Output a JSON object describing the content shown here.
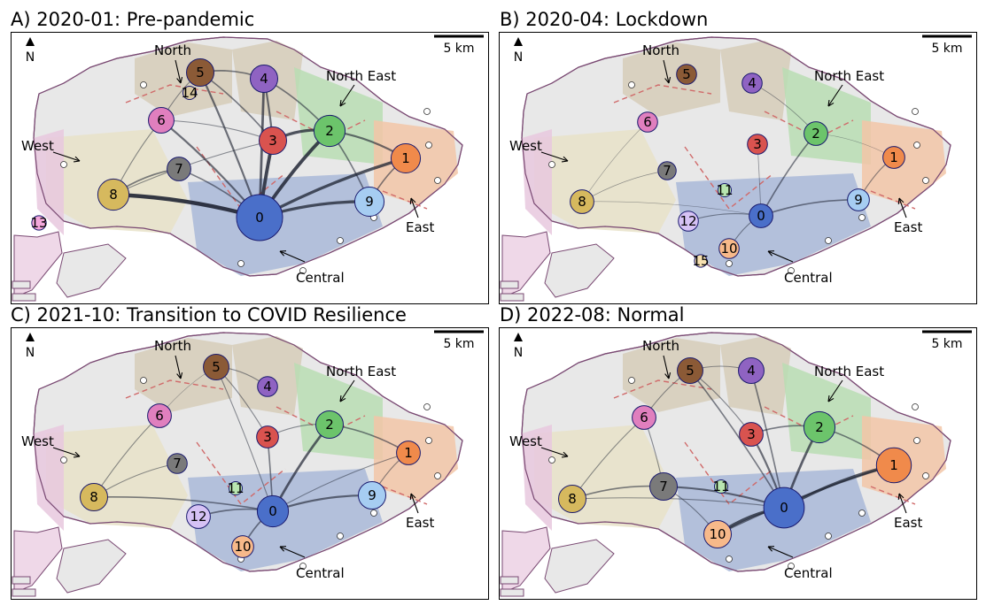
{
  "panels": [
    {
      "id": "A",
      "title": "A) 2020-01: Pre-pandemic",
      "clusters": [
        {
          "id": 0,
          "label": "0",
          "color": "#4a6fc9",
          "weight": 1.0
        },
        {
          "id": 1,
          "label": "1",
          "color": "#f08a4b",
          "weight": 0.55
        },
        {
          "id": 2,
          "label": "2",
          "color": "#6cc46b",
          "weight": 0.6
        },
        {
          "id": 3,
          "label": "3",
          "color": "#d9534f",
          "weight": 0.5
        },
        {
          "id": 4,
          "label": "4",
          "color": "#8f63c2",
          "weight": 0.5
        },
        {
          "id": 5,
          "label": "5",
          "color": "#8b5a36",
          "weight": 0.5
        },
        {
          "id": 6,
          "label": "6",
          "color": "#e07fbe",
          "weight": 0.45
        },
        {
          "id": 7,
          "label": "7",
          "color": "#7a7a7a",
          "weight": 0.4
        },
        {
          "id": 8,
          "label": "8",
          "color": "#d6b95e",
          "weight": 0.6
        },
        {
          "id": 9,
          "label": "9",
          "color": "#a6cdf2",
          "weight": 0.55
        },
        {
          "id": 13,
          "label": "13",
          "color": "#f4a8dc",
          "weight": 0.15
        },
        {
          "id": 14,
          "label": "14",
          "color": "#d8c8a0",
          "weight": 0.12
        }
      ],
      "edges": [
        [
          0,
          8,
          8
        ],
        [
          0,
          2,
          7
        ],
        [
          0,
          1,
          6
        ],
        [
          0,
          9,
          6
        ],
        [
          0,
          3,
          7
        ],
        [
          0,
          4,
          5
        ],
        [
          0,
          5,
          4
        ],
        [
          0,
          6,
          4
        ],
        [
          0,
          7,
          3
        ],
        [
          2,
          3,
          6
        ],
        [
          2,
          1,
          4
        ],
        [
          2,
          9,
          3
        ],
        [
          2,
          4,
          3
        ],
        [
          3,
          4,
          4
        ],
        [
          3,
          5,
          3
        ],
        [
          5,
          4,
          3
        ],
        [
          8,
          7,
          3
        ],
        [
          8,
          6,
          2
        ],
        [
          9,
          1,
          3
        ],
        [
          6,
          5,
          2
        ],
        [
          3,
          6,
          2
        ],
        [
          8,
          3,
          2
        ]
      ]
    },
    {
      "id": "B",
      "title": "B) 2020-04: Lockdown",
      "clusters": [
        {
          "id": 0,
          "label": "0",
          "color": "#4a6fc9",
          "weight": 0.4
        },
        {
          "id": 1,
          "label": "1",
          "color": "#f08a4b",
          "weight": 0.35
        },
        {
          "id": 2,
          "label": "2",
          "color": "#6cc46b",
          "weight": 0.4
        },
        {
          "id": 3,
          "label": "3",
          "color": "#d9534f",
          "weight": 0.3
        },
        {
          "id": 4,
          "label": "4",
          "color": "#8f63c2",
          "weight": 0.3
        },
        {
          "id": 5,
          "label": "5",
          "color": "#8b5a36",
          "weight": 0.3
        },
        {
          "id": 6,
          "label": "6",
          "color": "#e07fbe",
          "weight": 0.3
        },
        {
          "id": 7,
          "label": "7",
          "color": "#7a7a7a",
          "weight": 0.25
        },
        {
          "id": 8,
          "label": "8",
          "color": "#d6b95e",
          "weight": 0.4
        },
        {
          "id": 9,
          "label": "9",
          "color": "#a6cdf2",
          "weight": 0.35
        },
        {
          "id": 10,
          "label": "10",
          "color": "#f7b98a",
          "weight": 0.3
        },
        {
          "id": 11,
          "label": "11",
          "color": "#b8e6b0",
          "weight": 0.12
        },
        {
          "id": 12,
          "label": "12",
          "color": "#d6c2f5",
          "weight": 0.3
        },
        {
          "id": 15,
          "label": "15",
          "color": "#f6e0b0",
          "weight": 0.1
        }
      ],
      "edges": [
        [
          0,
          9,
          3
        ],
        [
          0,
          2,
          3
        ],
        [
          0,
          12,
          2
        ],
        [
          0,
          10,
          2
        ],
        [
          9,
          1,
          2
        ],
        [
          0,
          3,
          1.5
        ],
        [
          2,
          4,
          1.5
        ],
        [
          8,
          7,
          1.5
        ],
        [
          8,
          6,
          1
        ],
        [
          2,
          1,
          1
        ],
        [
          0,
          8,
          1
        ]
      ]
    },
    {
      "id": "C",
      "title": "C) 2021-10: Transition to COVID Resilience",
      "clusters": [
        {
          "id": 0,
          "label": "0",
          "color": "#4a6fc9",
          "weight": 0.6
        },
        {
          "id": 1,
          "label": "1",
          "color": "#f08a4b",
          "weight": 0.4
        },
        {
          "id": 2,
          "label": "2",
          "color": "#6cc46b",
          "weight": 0.5
        },
        {
          "id": 3,
          "label": "3",
          "color": "#d9534f",
          "weight": 0.35
        },
        {
          "id": 4,
          "label": "4",
          "color": "#8f63c2",
          "weight": 0.3
        },
        {
          "id": 5,
          "label": "5",
          "color": "#8b5a36",
          "weight": 0.45
        },
        {
          "id": 6,
          "label": "6",
          "color": "#e07fbe",
          "weight": 0.4
        },
        {
          "id": 7,
          "label": "7",
          "color": "#7a7a7a",
          "weight": 0.3
        },
        {
          "id": 8,
          "label": "8",
          "color": "#d6b95e",
          "weight": 0.5
        },
        {
          "id": 9,
          "label": "9",
          "color": "#a6cdf2",
          "weight": 0.5
        },
        {
          "id": 10,
          "label": "10",
          "color": "#f7b98a",
          "weight": 0.35
        },
        {
          "id": 11,
          "label": "11",
          "color": "#b8e6b0",
          "weight": 0.12
        },
        {
          "id": 12,
          "label": "12",
          "color": "#d6c2f5",
          "weight": 0.4
        }
      ],
      "edges": [
        [
          0,
          2,
          5
        ],
        [
          0,
          9,
          4
        ],
        [
          0,
          8,
          3
        ],
        [
          0,
          12,
          3
        ],
        [
          0,
          10,
          3
        ],
        [
          0,
          3,
          3
        ],
        [
          2,
          1,
          3
        ],
        [
          1,
          9,
          2
        ],
        [
          0,
          5,
          2
        ],
        [
          2,
          3,
          2
        ],
        [
          3,
          5,
          2
        ],
        [
          5,
          4,
          2
        ],
        [
          8,
          7,
          2
        ],
        [
          8,
          6,
          2
        ],
        [
          0,
          1,
          2
        ],
        [
          6,
          5,
          1
        ]
      ]
    },
    {
      "id": "D",
      "title": "D) 2022-08: Normal",
      "clusters": [
        {
          "id": 0,
          "label": "0",
          "color": "#4a6fc9",
          "weight": 0.85
        },
        {
          "id": 1,
          "label": "1",
          "color": "#f08a4b",
          "weight": 0.7
        },
        {
          "id": 2,
          "label": "2",
          "color": "#6cc46b",
          "weight": 0.6
        },
        {
          "id": 3,
          "label": "3",
          "color": "#d9534f",
          "weight": 0.4
        },
        {
          "id": 4,
          "label": "4",
          "color": "#8f63c2",
          "weight": 0.45
        },
        {
          "id": 5,
          "label": "5",
          "color": "#8b5a36",
          "weight": 0.45
        },
        {
          "id": 6,
          "label": "6",
          "color": "#e07fbe",
          "weight": 0.4
        },
        {
          "id": 7,
          "label": "7",
          "color": "#7a7a7a",
          "weight": 0.5
        },
        {
          "id": 8,
          "label": "8",
          "color": "#d6b95e",
          "weight": 0.5
        },
        {
          "id": 10,
          "label": "10",
          "color": "#f7b98a",
          "weight": 0.5
        },
        {
          "id": 11,
          "label": "11",
          "color": "#b8e6b0",
          "weight": 0.12
        }
      ],
      "edges": [
        [
          0,
          1,
          6
        ],
        [
          0,
          10,
          6
        ],
        [
          0,
          2,
          5
        ],
        [
          0,
          3,
          4
        ],
        [
          0,
          7,
          4
        ],
        [
          10,
          1,
          4
        ],
        [
          0,
          4,
          3
        ],
        [
          0,
          5,
          3
        ],
        [
          2,
          3,
          3
        ],
        [
          2,
          1,
          3
        ],
        [
          7,
          8,
          3
        ],
        [
          7,
          6,
          2
        ],
        [
          5,
          4,
          2
        ],
        [
          3,
          5,
          2
        ],
        [
          6,
          5,
          2
        ],
        [
          8,
          6,
          2
        ],
        [
          0,
          8,
          2
        ],
        [
          7,
          10,
          2
        ]
      ]
    }
  ],
  "regions": {
    "north": "North",
    "north_east": "North East",
    "west": "West",
    "east": "East",
    "central": "Central"
  },
  "scale_bar": "5 km",
  "north_arrow": "N",
  "region_colors": {
    "central": "#a9b8d8",
    "west": "#e7e2c8",
    "west_far": "#e8c8de",
    "north": "#d6cdb8",
    "north_east": "#b9ddb3",
    "east": "#f2c6a7",
    "water": "#e8e8e8",
    "outline": "#7a4a73",
    "boundary_dash": "#d06a6a"
  }
}
